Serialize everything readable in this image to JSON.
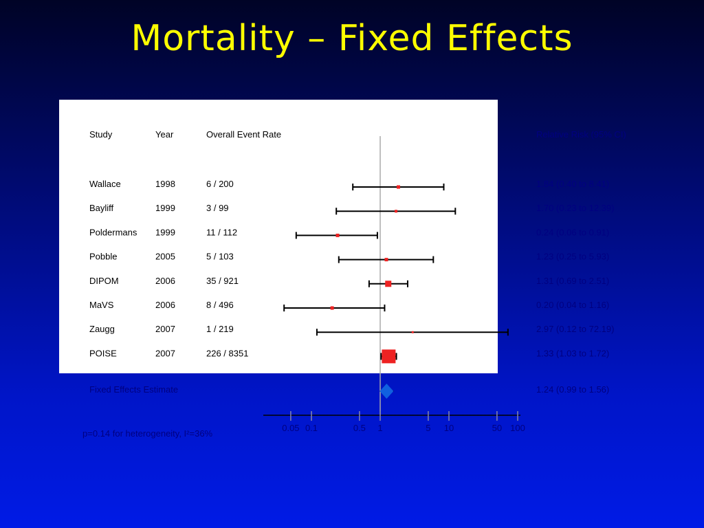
{
  "slide": {
    "title": "Mortality – Fixed Effects",
    "heterogeneity_note": "p=0.14 for heterogeneity, I²=36%"
  },
  "chart_data": {
    "type": "forest",
    "x_scale": "log",
    "xlim": [
      0.03,
      120
    ],
    "reference_line": 1,
    "x_ticks": [
      0.05,
      0.1,
      0.5,
      1,
      5,
      10,
      50,
      100
    ],
    "x_tick_labels": [
      "0.05",
      "0.1",
      "0.5",
      "1",
      "5",
      "10",
      "50",
      "100"
    ],
    "headers": {
      "study": "Study",
      "year": "Year",
      "event_rate": "Overall Event Rate",
      "effect": "Relative Risk (95% CI)"
    },
    "studies": [
      {
        "study": "Wallace",
        "year": "1998",
        "event_rate": "6 / 200",
        "rr": 1.84,
        "lower": 0.4,
        "upper": 8.41,
        "ci_text": "1.84 (0.40 to 8.41)",
        "weight_size": 5
      },
      {
        "study": "Bayliff",
        "year": "1999",
        "event_rate": "3 / 99",
        "rr": 1.7,
        "lower": 0.23,
        "upper": 12.39,
        "ci_text": "1.70 (0.23 to 12.39)",
        "weight_size": 4
      },
      {
        "study": "Poldermans",
        "year": "1999",
        "event_rate": "11 / 112",
        "rr": 0.24,
        "lower": 0.06,
        "upper": 0.91,
        "ci_text": "0.24 (0.06 to 0.91)",
        "weight_size": 5
      },
      {
        "study": "Pobble",
        "year": "2005",
        "event_rate": "5 / 103",
        "rr": 1.23,
        "lower": 0.25,
        "upper": 5.93,
        "ci_text": "1.23 (0.25 to 5.93)",
        "weight_size": 5
      },
      {
        "study": "DIPOM",
        "year": "2006",
        "event_rate": "35 / 921",
        "rr": 1.31,
        "lower": 0.69,
        "upper": 2.51,
        "ci_text": "1.31 (0.69 to 2.51)",
        "weight_size": 9
      },
      {
        "study": "MaVS",
        "year": "2006",
        "event_rate": "8 / 496",
        "rr": 0.2,
        "lower": 0.04,
        "upper": 1.16,
        "ci_text": "0.20 (0.04 to 1.16)",
        "weight_size": 5
      },
      {
        "study": "Zaugg",
        "year": "2007",
        "event_rate": "1 / 219",
        "rr": 2.97,
        "lower": 0.12,
        "upper": 72.19,
        "ci_text": "2.97 (0.12 to 72.19)",
        "weight_size": 3
      },
      {
        "study": "POISE",
        "year": "2007",
        "event_rate": "226 / 8351",
        "rr": 1.33,
        "lower": 1.03,
        "upper": 1.72,
        "ci_text": "1.33 (1.03 to 1.72)",
        "weight_size": 20
      }
    ],
    "pooled": {
      "label": "Fixed Effects Estimate",
      "rr": 1.24,
      "lower": 0.99,
      "upper": 1.56,
      "ci_text": "1.24 (0.99 to 1.56)"
    },
    "colors": {
      "point": "#ee2222",
      "diamond": "#1060e0",
      "ci_line": "#000000",
      "axis": "#000000",
      "ref_line": "#aaaaaa"
    }
  }
}
